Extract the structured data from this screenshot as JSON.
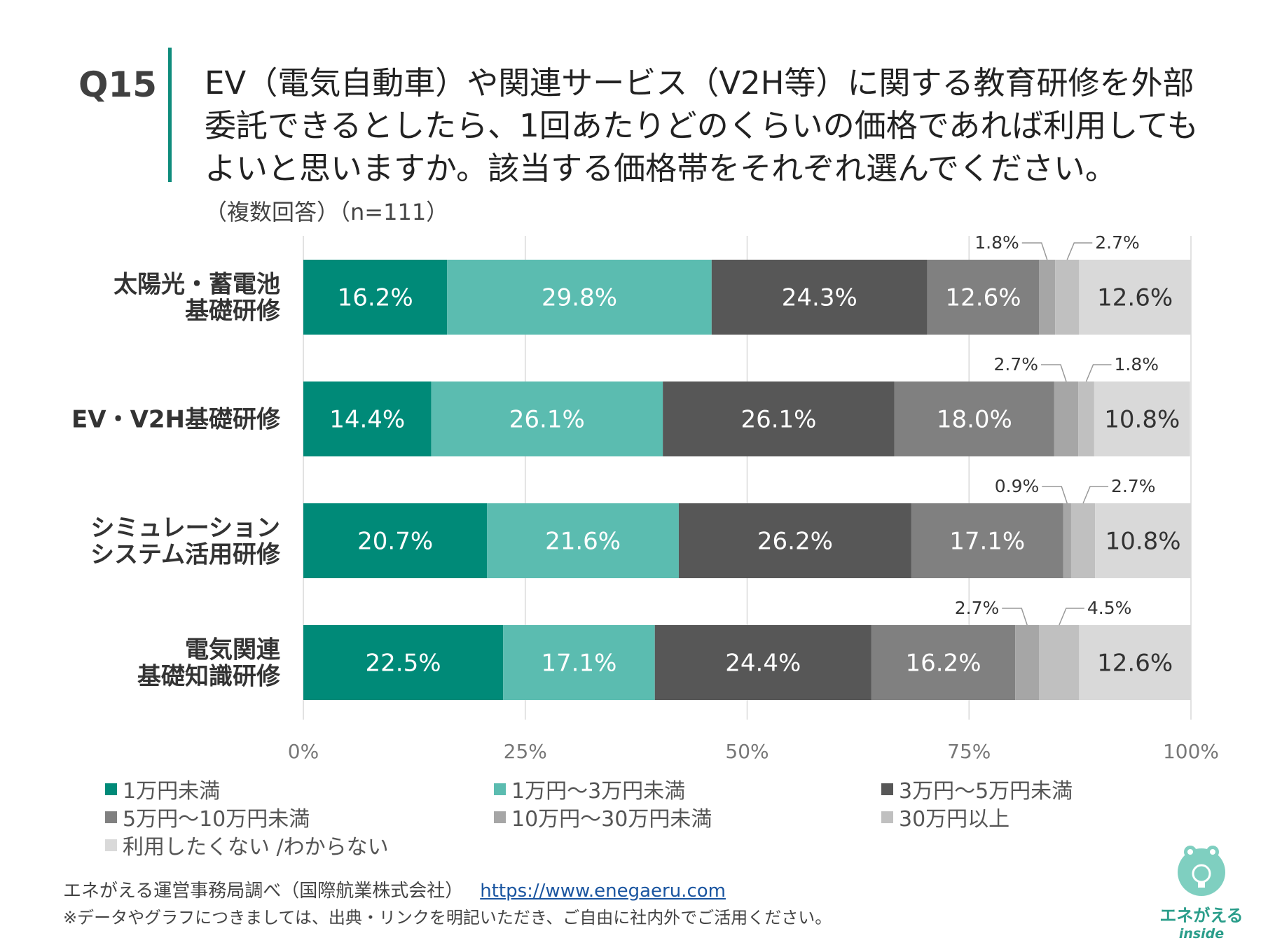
{
  "question": {
    "number": "Q15",
    "title_lines": [
      "EV（電気自動車）や関連サービス（V2H等）に関する教育研修を外部",
      "委託できるとしたら、1回あたりどのくらいの価格であれば利用しても",
      "よいと思いますか。該当する価格帯をそれぞれ選んでください。"
    ],
    "subtitle": "（複数回答）（n=111）"
  },
  "chart_data": {
    "type": "bar",
    "orientation": "horizontal",
    "stacked": true,
    "title": "",
    "categories": [
      [
        "太陽光・蓄電池",
        "基礎研修"
      ],
      [
        "EV・V2H基礎研修"
      ],
      [
        "シミュレーション",
        "システム活用研修"
      ],
      [
        "電気関連",
        "基礎知識研修"
      ]
    ],
    "series": [
      {
        "name": "1万円未満",
        "color": "#008a78",
        "values": [
          16.2,
          14.4,
          20.7,
          22.5
        ]
      },
      {
        "name": "1万円〜3万円未満",
        "color": "#5bbcb0",
        "values": [
          29.8,
          26.1,
          21.6,
          17.1
        ]
      },
      {
        "name": "3万円〜5万円未満",
        "color": "#575757",
        "values": [
          24.3,
          26.1,
          26.2,
          24.4
        ]
      },
      {
        "name": "5万円〜10万円未満",
        "color": "#808080",
        "values": [
          12.6,
          18.0,
          17.1,
          16.2
        ]
      },
      {
        "name": "10万円〜30万円未満",
        "color": "#a6a6a6",
        "values": [
          1.8,
          2.7,
          0.9,
          2.7
        ]
      },
      {
        "name": "30万円以上",
        "color": "#c0c0c0",
        "values": [
          2.7,
          1.8,
          2.7,
          4.5
        ]
      },
      {
        "name": "利用したくない /わからない",
        "color": "#d9d9d9",
        "values": [
          12.6,
          10.8,
          10.8,
          12.6
        ]
      }
    ],
    "value_labels": [
      [
        "16.2%",
        "29.8%",
        "24.3%",
        "12.6%",
        "1.8%",
        "2.7%",
        "12.6%"
      ],
      [
        "14.4%",
        "26.1%",
        "26.1%",
        "18.0%",
        "2.7%",
        "1.8%",
        "10.8%"
      ],
      [
        "20.7%",
        "21.6%",
        "26.2%",
        "17.1%",
        "0.9%",
        "2.7%",
        "10.8%"
      ],
      [
        "22.5%",
        "17.1%",
        "24.4%",
        "16.2%",
        "2.7%",
        "4.5%",
        "12.6%"
      ]
    ],
    "xlim": [
      0,
      100
    ],
    "xticks": [
      "0%",
      "25%",
      "50%",
      "75%",
      "100%"
    ],
    "grid": true,
    "xlabel": "",
    "ylabel": ""
  },
  "footer": {
    "source": "エネがえる運営事務局調べ（国際航業株式会社）",
    "link": "https://www.enegaeru.com",
    "note": "※データやグラフにつきましては、出典・リンクを明記いただき、ご自由に社内外でご活用ください。"
  },
  "logo": {
    "name": "エネがえる",
    "sub": "inside"
  }
}
